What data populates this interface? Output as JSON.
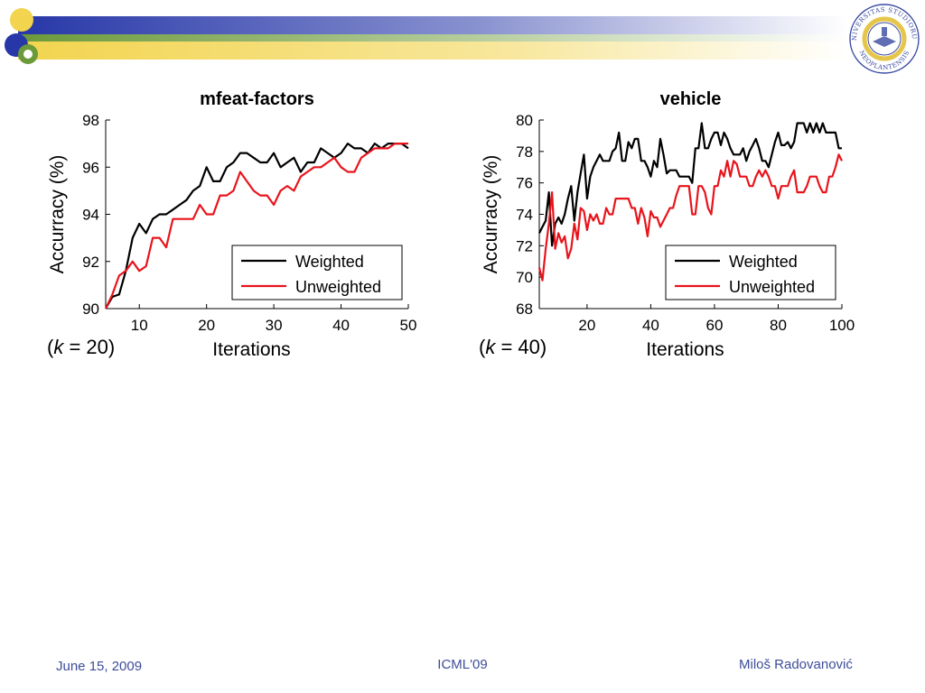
{
  "footer": {
    "date": "June 15, 2009",
    "venue": "ICML'09",
    "author": "Miloš Radovanović"
  },
  "logo": {
    "name": "university-seal",
    "text_top": "UNIVERSITAS STUDIORUM",
    "text_bottom": "NEOPLANTENSIS"
  },
  "colors": {
    "weighted": "#000000",
    "unweighted": "#e8141c",
    "accent_blue": "#2737a8",
    "accent_yellow": "#f2d44e",
    "accent_green": "#6b9a3a",
    "footer_text": "#3d4d99"
  },
  "chart_data": [
    {
      "type": "line",
      "title": "mfeat-factors",
      "xlabel": "Iterations",
      "ylabel": "Accurracy (%)",
      "note": "(k = 20)",
      "k_prefix": "(",
      "k_var": "k",
      "k_rest": " = 20)",
      "xlim": [
        5,
        50
      ],
      "ylim": [
        90,
        98
      ],
      "xticks": [
        10,
        20,
        30,
        40,
        50
      ],
      "yticks": [
        90,
        92,
        94,
        96,
        98
      ],
      "legend_position": "bottom-right",
      "grid": false,
      "x": [
        5,
        6,
        7,
        8,
        9,
        10,
        11,
        12,
        13,
        14,
        15,
        16,
        17,
        18,
        19,
        20,
        21,
        22,
        23,
        24,
        25,
        26,
        27,
        28,
        29,
        30,
        31,
        32,
        33,
        34,
        35,
        36,
        37,
        38,
        39,
        40,
        41,
        42,
        43,
        44,
        45,
        46,
        47,
        48,
        49,
        50
      ],
      "series": [
        {
          "name": "Weighted",
          "values": [
            90.0,
            90.5,
            90.6,
            91.6,
            93.0,
            93.6,
            93.2,
            93.8,
            94.0,
            94.0,
            94.2,
            94.4,
            94.6,
            95.0,
            95.2,
            96.0,
            95.4,
            95.4,
            96.0,
            96.2,
            96.6,
            96.6,
            96.4,
            96.2,
            96.2,
            96.6,
            96.0,
            96.2,
            96.4,
            95.8,
            96.2,
            96.2,
            96.8,
            96.6,
            96.4,
            96.6,
            97.0,
            96.8,
            96.8,
            96.6,
            97.0,
            96.8,
            97.0,
            97.0,
            97.0,
            96.8
          ]
        },
        {
          "name": "Unweighted",
          "values": [
            90.0,
            90.6,
            91.4,
            91.6,
            92.0,
            91.6,
            91.8,
            93.0,
            93.0,
            92.6,
            93.8,
            93.8,
            93.8,
            93.8,
            94.4,
            94.0,
            94.0,
            94.8,
            94.8,
            95.0,
            95.8,
            95.4,
            95.0,
            94.8,
            94.8,
            94.4,
            95.0,
            95.2,
            95.0,
            95.6,
            95.8,
            96.0,
            96.0,
            96.2,
            96.4,
            96.0,
            95.8,
            95.8,
            96.4,
            96.6,
            96.8,
            96.8,
            96.8,
            97.0,
            97.0,
            97.0
          ]
        }
      ]
    },
    {
      "type": "line",
      "title": "vehicle",
      "xlabel": "Iterations",
      "ylabel": "Accurracy (%)",
      "note": "(k = 40)",
      "k_prefix": "(",
      "k_var": "k",
      "k_rest": " = 40)",
      "xlim": [
        5,
        100
      ],
      "ylim": [
        68,
        80
      ],
      "xticks": [
        20,
        40,
        60,
        80,
        100
      ],
      "yticks": [
        68,
        70,
        72,
        74,
        76,
        78,
        80
      ],
      "legend_position": "bottom-right",
      "grid": false,
      "x": [
        5,
        6,
        7,
        8,
        9,
        10,
        11,
        12,
        13,
        14,
        15,
        16,
        17,
        18,
        19,
        20,
        21,
        22,
        23,
        24,
        25,
        26,
        27,
        28,
        29,
        30,
        31,
        32,
        33,
        34,
        35,
        36,
        37,
        38,
        39,
        40,
        41,
        42,
        43,
        44,
        45,
        46,
        47,
        48,
        49,
        50,
        51,
        52,
        53,
        54,
        55,
        56,
        57,
        58,
        59,
        60,
        61,
        62,
        63,
        64,
        65,
        66,
        67,
        68,
        69,
        70,
        71,
        72,
        73,
        74,
        75,
        76,
        77,
        78,
        79,
        80,
        81,
        82,
        83,
        84,
        85,
        86,
        87,
        88,
        89,
        90,
        91,
        92,
        93,
        94,
        95,
        96,
        97,
        98,
        99,
        100
      ],
      "series": [
        {
          "name": "Weighted",
          "values": [
            72.8,
            73.2,
            73.6,
            75.4,
            72.0,
            73.4,
            73.8,
            73.4,
            74.0,
            75.0,
            75.8,
            73.6,
            75.4,
            76.6,
            77.8,
            75.0,
            76.4,
            77.0,
            77.4,
            77.8,
            77.4,
            77.4,
            77.4,
            78.0,
            78.2,
            79.2,
            77.4,
            77.4,
            78.6,
            78.2,
            78.8,
            78.8,
            77.4,
            77.4,
            77.0,
            76.4,
            77.4,
            77.0,
            78.8,
            77.8,
            76.6,
            76.8,
            76.8,
            76.8,
            76.4,
            76.4,
            76.4,
            76.4,
            76.0,
            78.2,
            78.2,
            79.8,
            78.2,
            78.2,
            78.8,
            79.2,
            79.2,
            78.4,
            79.2,
            78.8,
            78.2,
            77.8,
            77.8,
            77.8,
            78.2,
            77.4,
            78.0,
            78.4,
            78.8,
            78.2,
            77.4,
            77.4,
            77.0,
            77.8,
            78.6,
            79.2,
            78.4,
            78.4,
            78.6,
            78.2,
            78.6,
            79.8,
            79.8,
            79.8,
            79.2,
            79.8,
            79.2,
            79.8,
            79.2,
            79.8,
            79.2,
            79.2,
            79.2,
            79.2,
            78.2,
            78.2
          ]
        },
        {
          "name": "Unweighted",
          "values": [
            70.6,
            69.8,
            71.8,
            73.4,
            75.4,
            71.8,
            72.8,
            72.2,
            72.6,
            71.2,
            71.8,
            73.4,
            72.4,
            74.4,
            74.2,
            73.0,
            74.0,
            73.6,
            74.0,
            73.4,
            73.4,
            74.4,
            74.0,
            74.0,
            75.0,
            75.0,
            75.0,
            75.0,
            75.0,
            74.4,
            74.4,
            73.4,
            74.4,
            73.8,
            72.6,
            74.2,
            73.8,
            73.8,
            73.2,
            73.6,
            74.0,
            74.4,
            74.4,
            75.2,
            75.8,
            75.8,
            75.8,
            75.8,
            74.0,
            74.0,
            75.8,
            75.8,
            75.4,
            74.4,
            74.0,
            75.8,
            75.8,
            76.8,
            76.4,
            77.4,
            76.4,
            77.4,
            77.2,
            76.4,
            76.4,
            76.4,
            75.8,
            75.8,
            76.4,
            76.8,
            76.4,
            76.8,
            76.4,
            75.8,
            75.8,
            75.0,
            75.8,
            75.8,
            75.8,
            76.4,
            76.8,
            75.4,
            75.4,
            75.4,
            75.8,
            76.4,
            76.4,
            76.4,
            75.8,
            75.4,
            75.4,
            76.4,
            76.4,
            77.0,
            77.8,
            77.4
          ]
        }
      ]
    }
  ]
}
